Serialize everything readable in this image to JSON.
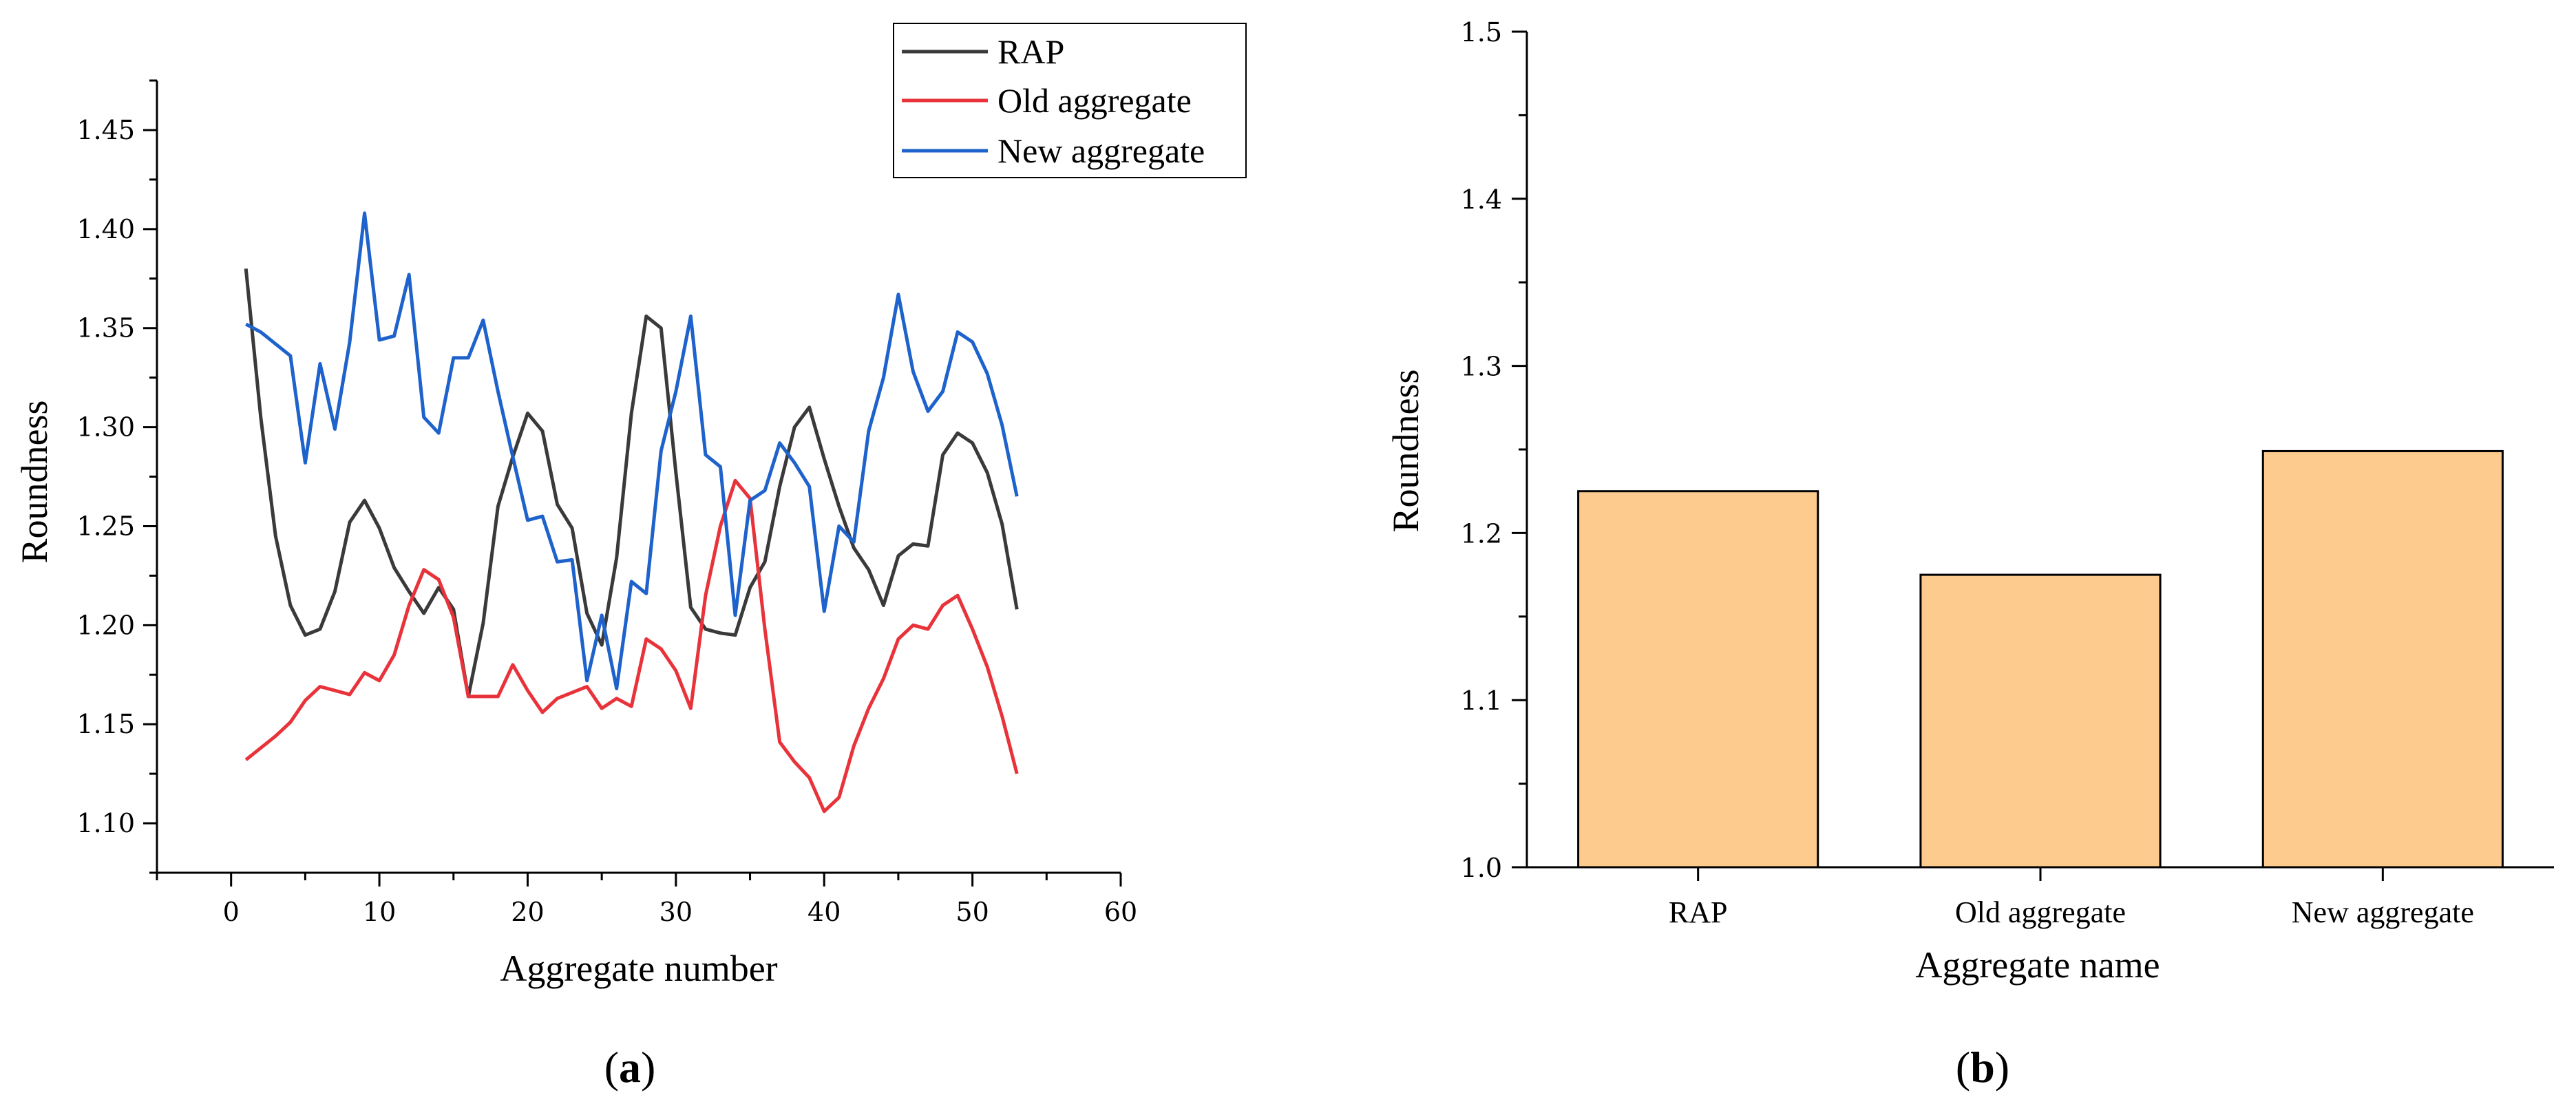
{
  "chart_data": [
    {
      "type": "line",
      "panel_label": "a",
      "xlabel": "Aggregate number",
      "ylabel": "Roundness",
      "xlim": [
        -5,
        60
      ],
      "ylim": [
        1.075,
        1.475
      ],
      "xticks": [
        0,
        10,
        20,
        30,
        40,
        50,
        60
      ],
      "yticks": [
        "1.10",
        "1.15",
        "1.20",
        "1.25",
        "1.30",
        "1.35",
        "1.40",
        "1.45"
      ],
      "legend_position": "top-right",
      "x": [
        1,
        2,
        3,
        4,
        5,
        6,
        7,
        8,
        9,
        10,
        11,
        12,
        13,
        14,
        15,
        16,
        17,
        18,
        19,
        20,
        21,
        22,
        23,
        24,
        25,
        26,
        27,
        28,
        29,
        30,
        31,
        32,
        33,
        34,
        35,
        36,
        37,
        38,
        39,
        40,
        41,
        42,
        43,
        44,
        45,
        46,
        47,
        48,
        49,
        50,
        51,
        52,
        53
      ],
      "series": [
        {
          "name": "RAP",
          "color": "#3a3a3a",
          "values": [
            1.38,
            1.305,
            1.245,
            1.21,
            1.195,
            1.198,
            1.217,
            1.252,
            1.263,
            1.249,
            1.229,
            1.217,
            1.206,
            1.219,
            1.208,
            1.164,
            1.201,
            1.26,
            1.285,
            1.307,
            1.298,
            1.261,
            1.249,
            1.206,
            1.19,
            1.234,
            1.307,
            1.356,
            1.35,
            1.277,
            1.209,
            1.198,
            1.196,
            1.195,
            1.219,
            1.232,
            1.27,
            1.3,
            1.31,
            1.284,
            1.26,
            1.239,
            1.228,
            1.21,
            1.235,
            1.241,
            1.24,
            1.286,
            1.297,
            1.292,
            1.277,
            1.251,
            1.208
          ]
        },
        {
          "name": "Old aggregate",
          "color": "#e8333a",
          "values": [
            1.132,
            1.138,
            1.144,
            1.151,
            1.162,
            1.169,
            1.167,
            1.165,
            1.176,
            1.172,
            1.185,
            1.21,
            1.228,
            1.223,
            1.204,
            1.164,
            1.164,
            1.164,
            1.18,
            1.167,
            1.156,
            1.163,
            1.166,
            1.169,
            1.158,
            1.163,
            1.159,
            1.193,
            1.188,
            1.177,
            1.158,
            1.215,
            1.25,
            1.273,
            1.264,
            1.198,
            1.141,
            1.131,
            1.123,
            1.106,
            1.113,
            1.139,
            1.158,
            1.173,
            1.193,
            1.2,
            1.198,
            1.21,
            1.215,
            1.198,
            1.179,
            1.154,
            1.125
          ]
        },
        {
          "name": "New aggregate",
          "color": "#1e62cc",
          "values": [
            1.352,
            1.348,
            1.342,
            1.336,
            1.282,
            1.332,
            1.299,
            1.343,
            1.408,
            1.344,
            1.346,
            1.377,
            1.305,
            1.297,
            1.335,
            1.335,
            1.354,
            1.318,
            1.285,
            1.253,
            1.255,
            1.232,
            1.233,
            1.172,
            1.205,
            1.168,
            1.222,
            1.216,
            1.288,
            1.318,
            1.356,
            1.286,
            1.28,
            1.205,
            1.263,
            1.268,
            1.292,
            1.282,
            1.27,
            1.207,
            1.25,
            1.242,
            1.298,
            1.325,
            1.367,
            1.328,
            1.308,
            1.318,
            1.348,
            1.343,
            1.327,
            1.301,
            1.265
          ]
        }
      ]
    },
    {
      "type": "bar",
      "panel_label": "b",
      "xlabel": "Aggregate name",
      "ylabel": "Roundness",
      "ylim": [
        1.0,
        1.5
      ],
      "yticks": [
        "1.0",
        "1.1",
        "1.2",
        "1.3",
        "1.4",
        "1.5"
      ],
      "categories": [
        "RAP",
        "Old aggregate",
        "New aggregate"
      ],
      "values": [
        1.225,
        1.175,
        1.249
      ],
      "bar_color": "#fecb8f"
    }
  ]
}
